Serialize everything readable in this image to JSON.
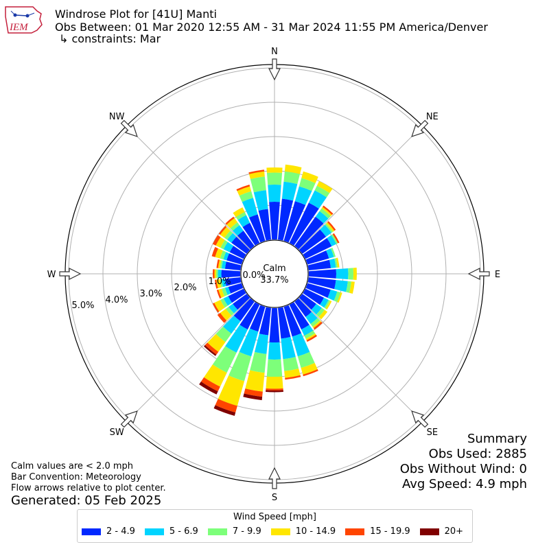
{
  "header": {
    "title_line1": "Windrose Plot for [41U] Manti",
    "title_line2": "Obs Between: 01 Mar 2020 12:55 AM - 31 Mar 2024 11:55 PM America/Denver",
    "title_line3": "↳ constraints: Mar",
    "logo_text": "IEM"
  },
  "footer": {
    "calm_note": "Calm values are < 2.0 mph",
    "bar_convention": "Bar Convention: Meteorology",
    "flow_note": "Flow arrows relative to plot center.",
    "generated": "Generated: 05 Feb 2025"
  },
  "summary": {
    "title": "Summary",
    "obs_used": "Obs Used: 2885",
    "obs_without_wind": "Obs Without Wind: 0",
    "avg_speed": "Avg Speed: 4.9 mph"
  },
  "chart_data": {
    "type": "windrose",
    "center_label": "Calm",
    "calm_percent": "33.7%",
    "directions_labeled": [
      "N",
      "NE",
      "E",
      "SE",
      "S",
      "SW",
      "W",
      "NW"
    ],
    "radial_ticks": [
      "0.0%",
      "1.0%",
      "2.0%",
      "3.0%",
      "4.0%",
      "5.0%"
    ],
    "radial_max": 5.0,
    "legend_title": "Wind Speed [mph]",
    "bins": [
      {
        "label": "2 - 4.9",
        "color": "#0028ff"
      },
      {
        "label": "5 - 6.9",
        "color": "#00d4ff"
      },
      {
        "label": "7 - 9.9",
        "color": "#7dff7a"
      },
      {
        "label": "10 - 14.9",
        "color": "#ffe600"
      },
      {
        "label": "15 - 19.9",
        "color": "#ff4500"
      },
      {
        "label": "20+",
        "color": "#800000"
      }
    ],
    "sectors": [
      {
        "dir": 0,
        "values": [
          1.1,
          0.5,
          0.35,
          0.15,
          0.0,
          0.0
        ]
      },
      {
        "dir": 10,
        "values": [
          1.2,
          0.5,
          0.3,
          0.2,
          0.0,
          0.0
        ]
      },
      {
        "dir": 20,
        "values": [
          1.2,
          0.45,
          0.25,
          0.2,
          0.0,
          0.0
        ]
      },
      {
        "dir": 30,
        "values": [
          1.3,
          0.4,
          0.15,
          0.15,
          0.0,
          0.0
        ]
      },
      {
        "dir": 40,
        "values": [
          1.05,
          0.2,
          0.1,
          0.05,
          0.05,
          0.0
        ]
      },
      {
        "dir": 50,
        "values": [
          0.85,
          0.2,
          0.05,
          0.05,
          0.05,
          0.0
        ]
      },
      {
        "dir": 60,
        "values": [
          0.85,
          0.15,
          0.05,
          0.0,
          0.05,
          0.0
        ]
      },
      {
        "dir": 70,
        "values": [
          0.65,
          0.15,
          0.05,
          0.0,
          0.0,
          0.0
        ]
      },
      {
        "dir": 80,
        "values": [
          0.65,
          0.15,
          0.05,
          0.05,
          0.0,
          0.0
        ]
      },
      {
        "dir": 90,
        "values": [
          0.8,
          0.35,
          0.15,
          0.1,
          0.0,
          0.0
        ]
      },
      {
        "dir": 100,
        "values": [
          0.8,
          0.35,
          0.1,
          0.1,
          0.0,
          0.0
        ]
      },
      {
        "dir": 110,
        "values": [
          0.7,
          0.2,
          0.1,
          0.05,
          0.0,
          0.0
        ]
      },
      {
        "dir": 120,
        "values": [
          0.6,
          0.15,
          0.05,
          0.05,
          0.0,
          0.0
        ]
      },
      {
        "dir": 130,
        "values": [
          0.5,
          0.2,
          0.1,
          0.1,
          0.0,
          0.0
        ]
      },
      {
        "dir": 140,
        "values": [
          0.55,
          0.25,
          0.1,
          0.05,
          0.05,
          0.0
        ]
      },
      {
        "dir": 150,
        "values": [
          0.8,
          0.2,
          0.1,
          0.05,
          0.05,
          0.0
        ]
      },
      {
        "dir": 160,
        "values": [
          0.9,
          0.6,
          0.35,
          0.2,
          0.05,
          0.0
        ]
      },
      {
        "dir": 170,
        "values": [
          0.9,
          0.6,
          0.35,
          0.2,
          0.05,
          0.0
        ]
      },
      {
        "dir": 180,
        "values": [
          1.0,
          0.5,
          0.5,
          0.35,
          0.05,
          0.05
        ]
      },
      {
        "dir": 190,
        "values": [
          0.8,
          0.55,
          0.55,
          0.55,
          0.15,
          0.1
        ]
      },
      {
        "dir": 200,
        "values": [
          0.75,
          0.75,
          0.75,
          0.75,
          0.2,
          0.1
        ]
      },
      {
        "dir": 210,
        "values": [
          0.8,
          0.75,
          0.65,
          0.45,
          0.15,
          0.1
        ]
      },
      {
        "dir": 220,
        "values": [
          0.7,
          0.45,
          0.3,
          0.35,
          0.1,
          0.05
        ]
      },
      {
        "dir": 230,
        "values": [
          0.5,
          0.15,
          0.1,
          0.2,
          0.1,
          0.0
        ]
      },
      {
        "dir": 240,
        "values": [
          0.5,
          0.15,
          0.1,
          0.2,
          0.05,
          0.0
        ]
      },
      {
        "dir": 250,
        "values": [
          0.4,
          0.1,
          0.1,
          0.1,
          0.05,
          0.0
        ]
      },
      {
        "dir": 260,
        "values": [
          0.45,
          0.1,
          0.05,
          0.1,
          0.05,
          0.0
        ]
      },
      {
        "dir": 270,
        "values": [
          0.55,
          0.1,
          0.05,
          0.05,
          0.05,
          0.0
        ]
      },
      {
        "dir": 280,
        "values": [
          0.45,
          0.1,
          0.05,
          0.05,
          0.05,
          0.0
        ]
      },
      {
        "dir": 290,
        "values": [
          0.45,
          0.1,
          0.1,
          0.15,
          0.1,
          0.0
        ]
      },
      {
        "dir": 300,
        "values": [
          0.45,
          0.2,
          0.1,
          0.15,
          0.1,
          0.0
        ]
      },
      {
        "dir": 310,
        "values": [
          0.55,
          0.15,
          0.1,
          0.15,
          0.05,
          0.0
        ]
      },
      {
        "dir": 320,
        "values": [
          0.55,
          0.2,
          0.1,
          0.15,
          0.05,
          0.0
        ]
      },
      {
        "dir": 330,
        "values": [
          0.65,
          0.25,
          0.1,
          0.15,
          0.0,
          0.0
        ]
      },
      {
        "dir": 340,
        "values": [
          0.8,
          0.5,
          0.2,
          0.15,
          0.05,
          0.0
        ]
      },
      {
        "dir": 350,
        "values": [
          0.9,
          0.55,
          0.4,
          0.15,
          0.05,
          0.0
        ]
      }
    ]
  }
}
